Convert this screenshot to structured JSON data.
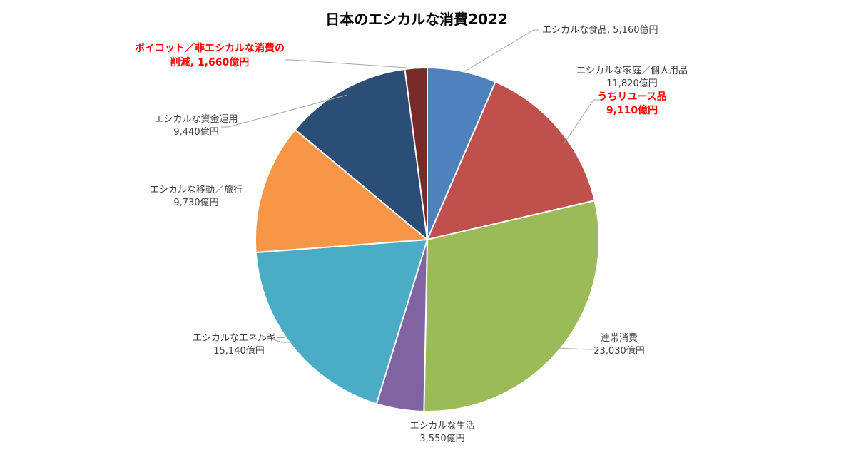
{
  "chart_data": {
    "type": "pie",
    "title": "日本のエシカルな消費2022",
    "unit": "億円",
    "slices": [
      {
        "label": "エシカルな食品",
        "value": 5160,
        "value_text": "5,160億円",
        "color": "#4f81bd"
      },
      {
        "label": "エシカルな家庭／個人用品",
        "value": 11820,
        "value_text": "11,820億円",
        "color": "#c0504d"
      },
      {
        "label": "連帯消費",
        "value": 23030,
        "value_text": "23,030億円",
        "color": "#9bbb59"
      },
      {
        "label": "エシカルな生活",
        "value": 3550,
        "value_text": "3,550億円",
        "color": "#8064a2"
      },
      {
        "label": "エシカルなエネルギー",
        "value": 15140,
        "value_text": "15,140億円",
        "color": "#4bacc6"
      },
      {
        "label": "エシカルな移動／旅行",
        "value": 9730,
        "value_text": "9,730億円",
        "color": "#f79646"
      },
      {
        "label": "エシカルな資金運用",
        "value": 9440,
        "value_text": "9,440億円",
        "color": "#2c4d75"
      },
      {
        "label": "ボイコット／非エシカルな消費の削減",
        "value": 1660,
        "value_text": "1,660億円",
        "color": "#772c2a"
      }
    ],
    "labels_text": {
      "food": "エシカルな食品, 5,160億円",
      "household_line1": "エシカルな家庭／個人用品",
      "household_line2": "11,820億円",
      "reuse_line1": "うちリユース品",
      "reuse_line2": "9,110億円",
      "solidarity_line1": "連帯消費",
      "solidarity_line2": "23,030億円",
      "life_line1": "エシカルな生活",
      "life_line2": "3,550億円",
      "energy_line1": "エシカルなエネルギー",
      "energy_line2": "15,140億円",
      "travel_line1": "エシカルな移動／旅行",
      "travel_line2": "9,730億円",
      "finance_line1": "エシカルな資金運用",
      "finance_line2": "9,440億円",
      "boycott_line1": "ボイコット／非エシカルな消費の",
      "boycott_line2": "削減, 1,660億円"
    }
  }
}
